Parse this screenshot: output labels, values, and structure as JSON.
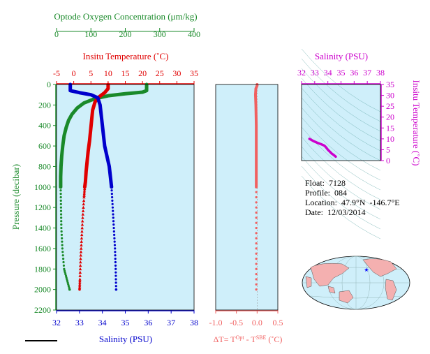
{
  "main_panel": {
    "oxygen_axis": {
      "title": "Optode Oxygen Concentration (μm/kg)",
      "ticks": [
        0,
        100,
        200,
        300,
        400
      ],
      "range": [
        0,
        400
      ],
      "color": "#1a8a2a"
    },
    "temperature_axis": {
      "title": "Insitu Temperature (˚C)",
      "ticks": [
        -5,
        0,
        5,
        10,
        15,
        20,
        25,
        30,
        35
      ],
      "range": [
        -5,
        35
      ],
      "color": "#e00000"
    },
    "salinity_axis": {
      "title": "Salinity (PSU)",
      "ticks": [
        32,
        33,
        34,
        35,
        36,
        37,
        38
      ],
      "tick_labels": [
        "32",
        "33",
        "34",
        "35",
        "36",
        "37",
        "38"
      ],
      "range": [
        32,
        38
      ],
      "color": "#0000cc"
    },
    "pressure_axis": {
      "title": "Pressure (decibar)",
      "ticks": [
        0,
        200,
        400,
        600,
        800,
        1000,
        1200,
        1400,
        1600,
        1800,
        2000,
        2200
      ],
      "range": [
        0,
        2200
      ],
      "color": "#1a8a2a"
    },
    "background": "#cfeffa"
  },
  "delta_panel": {
    "axis_title": "ΔT= T",
    "sup1": "Opt",
    "mid": " - T",
    "sup2": "SBE",
    "unit": " (˚C)",
    "ticks": [
      -1.0,
      -0.5,
      0.0,
      0.5
    ],
    "tick_labels": [
      "-1.0",
      "-0.5",
      "0.0",
      "0.5"
    ],
    "range": [
      -1.0,
      0.5
    ],
    "color": "#f06060"
  },
  "ts_panel": {
    "salinity_title": "Salinity (PSU)",
    "salinity_ticks": [
      32,
      33,
      34,
      35,
      36,
      37,
      38
    ],
    "temp_title": "Insitu Temperature (˚C)",
    "temp_ticks": [
      0,
      5,
      10,
      15,
      20,
      25,
      30,
      35
    ],
    "color": "#cc00cc"
  },
  "info": {
    "float": "Float:  7128",
    "profile": "Profile:  084",
    "location": "Location:  47.9°N  -146.7°E",
    "date": "Date:  12/03/2014"
  },
  "chart_data": [
    {
      "type": "line",
      "name": "profiles",
      "series": [
        {
          "name": "Oxygen",
          "color": "#1a8a2a",
          "points": [
            [
              262,
              0
            ],
            [
              262,
              60
            ],
            [
              250,
              75
            ],
            [
              200,
              90
            ],
            [
              150,
              110
            ],
            [
              110,
              140
            ],
            [
              80,
              180
            ],
            [
              60,
              230
            ],
            [
              45,
              290
            ],
            [
              35,
              350
            ],
            [
              28,
              420
            ],
            [
              22,
              500
            ],
            [
              18,
              600
            ],
            [
              15,
              700
            ],
            [
              13,
              800
            ],
            [
              12,
              900
            ],
            [
              12,
              1000
            ],
            [
              13,
              1200
            ],
            [
              14,
              1400
            ],
            [
              17,
              1600
            ],
            [
              22,
              1800
            ],
            [
              30,
              1900
            ],
            [
              38,
              2000
            ]
          ]
        },
        {
          "name": "Temperature",
          "color": "#e00000",
          "points": [
            [
              10,
              0
            ],
            [
              10,
              40
            ],
            [
              9,
              80
            ],
            [
              7,
              130
            ],
            [
              6.2,
              170
            ],
            [
              5.5,
              250
            ],
            [
              5.2,
              350
            ],
            [
              4.9,
              450
            ],
            [
              4.6,
              550
            ],
            [
              4.2,
              650
            ],
            [
              3.9,
              750
            ],
            [
              3.6,
              850
            ],
            [
              3.4,
              950
            ],
            [
              3.2,
              1000
            ],
            [
              3.0,
              1100
            ],
            [
              2.6,
              1300
            ],
            [
              2.3,
              1500
            ],
            [
              2.0,
              1700
            ],
            [
              1.8,
              1900
            ],
            [
              1.7,
              2000
            ]
          ]
        },
        {
          "name": "Salinity",
          "color": "#0000cc",
          "points": [
            [
              32.6,
              0
            ],
            [
              32.6,
              60
            ],
            [
              33.0,
              80
            ],
            [
              33.5,
              100
            ],
            [
              33.8,
              130
            ],
            [
              33.9,
              200
            ],
            [
              33.95,
              300
            ],
            [
              34.0,
              400
            ],
            [
              34.05,
              500
            ],
            [
              34.1,
              600
            ],
            [
              34.2,
              700
            ],
            [
              34.3,
              800
            ],
            [
              34.35,
              900
            ],
            [
              34.4,
              1000
            ],
            [
              34.45,
              1200
            ],
            [
              34.5,
              1400
            ],
            [
              34.55,
              1600
            ],
            [
              34.58,
              1800
            ],
            [
              34.6,
              2000
            ]
          ]
        }
      ]
    },
    {
      "type": "line",
      "name": "delta_t",
      "series": [
        {
          "name": "Delta T",
          "color": "#f06060",
          "points": [
            [
              0.0,
              0
            ],
            [
              0.0,
              10
            ],
            [
              -0.03,
              40
            ],
            [
              -0.04,
              100
            ],
            [
              -0.03,
              200
            ],
            [
              -0.02,
              400
            ],
            [
              -0.02,
              600
            ],
            [
              -0.02,
              800
            ],
            [
              -0.02,
              1000
            ],
            [
              -0.02,
              1200
            ],
            [
              -0.02,
              1400
            ],
            [
              -0.02,
              1600
            ],
            [
              -0.02,
              1800
            ],
            [
              -0.02,
              2000
            ]
          ]
        }
      ]
    },
    {
      "type": "scatter",
      "name": "ts_diagram",
      "xlim": [
        32,
        38
      ],
      "ylim": [
        0,
        35
      ],
      "series": [
        {
          "name": "T-S",
          "color": "#cc00cc",
          "points": [
            [
              32.6,
              10
            ],
            [
              32.9,
              9
            ],
            [
              33.2,
              8.2
            ],
            [
              33.5,
              7.5
            ],
            [
              33.7,
              7
            ],
            [
              33.8,
              6.5
            ],
            [
              33.9,
              5.8
            ],
            [
              34.0,
              5
            ],
            [
              34.1,
              4.4
            ],
            [
              34.2,
              3.8
            ],
            [
              34.3,
              3.2
            ],
            [
              34.4,
              2.8
            ],
            [
              34.5,
              2.3
            ],
            [
              34.6,
              1.8
            ]
          ]
        }
      ]
    }
  ]
}
